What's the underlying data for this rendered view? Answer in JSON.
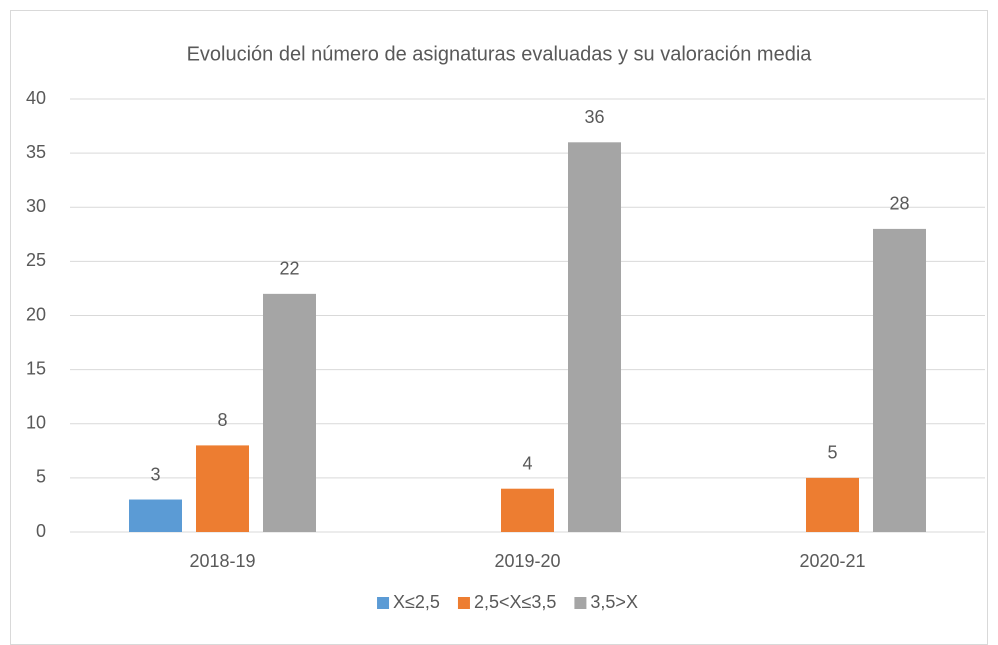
{
  "chart_data": {
    "type": "bar",
    "title": "Evolución del número de asignaturas evaluadas y su valoración media",
    "categories": [
      "2018-19",
      "2019-20",
      "2020-21"
    ],
    "series": [
      {
        "name": "X≤2,5",
        "color": "#5b9bd5",
        "values": [
          3,
          null,
          null
        ]
      },
      {
        "name": "2,5<X≤3,5",
        "color": "#ed7d31",
        "values": [
          8,
          4,
          5
        ]
      },
      {
        "name": "3,5>X",
        "color": "#a5a5a5",
        "values": [
          22,
          36,
          28
        ]
      }
    ],
    "ylim": [
      0,
      40
    ],
    "yticks": [
      0,
      5,
      10,
      15,
      20,
      25,
      30,
      35,
      40
    ],
    "grid": true,
    "legend": "bottom"
  }
}
